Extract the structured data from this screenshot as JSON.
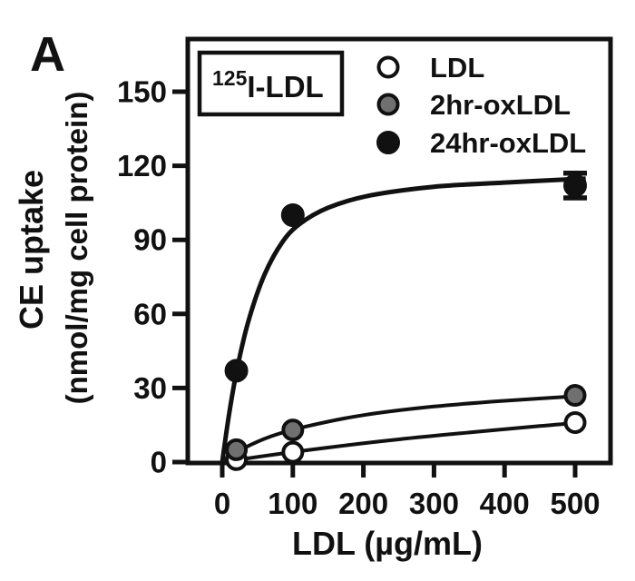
{
  "panel": {
    "label": "A"
  },
  "inset": {
    "superscript": "125",
    "label": "I-LDL"
  },
  "colors": {
    "ink": "#111111",
    "gray_marker": "#707070",
    "white_marker": "#ffffff",
    "background": "#ffffff"
  },
  "chart_data": {
    "type": "scatter",
    "title": "",
    "xlabel": "LDL (µg/mL)",
    "ylabel": [
      "CE uptake",
      "(nmol/mg cell protein)"
    ],
    "x_ticks": [
      0,
      100,
      200,
      300,
      400,
      500
    ],
    "y_ticks": [
      0,
      30,
      60,
      90,
      120,
      150
    ],
    "xlim": [
      -49,
      550
    ],
    "ylim": [
      0,
      171
    ],
    "grid": false,
    "legend_position": "top-right-inside",
    "series": [
      {
        "name": "LDL",
        "marker": "open-circle",
        "marker_fill": "#ffffff",
        "line_width": 4,
        "points": [
          {
            "x": 20,
            "y": 1
          },
          {
            "x": 100,
            "y": 4
          },
          {
            "x": 500,
            "y": 16
          }
        ],
        "fit_curve": [
          [
            0,
            0
          ],
          [
            60,
            2.5
          ],
          [
            150,
            5.9
          ],
          [
            250,
            9.2
          ],
          [
            350,
            12.0
          ],
          [
            450,
            14.6
          ],
          [
            515,
            16.1
          ]
        ]
      },
      {
        "name": "2hr-oxLDL",
        "marker": "gray-circle",
        "marker_fill": "#707070",
        "line_width": 4,
        "points": [
          {
            "x": 20,
            "y": 5
          },
          {
            "x": 100,
            "y": 13
          },
          {
            "x": 500,
            "y": 27
          }
        ],
        "fit_curve": [
          [
            0,
            0
          ],
          [
            30,
            5.5
          ],
          [
            70,
            10.5
          ],
          [
            120,
            14.5
          ],
          [
            200,
            19
          ],
          [
            300,
            22.5
          ],
          [
            400,
            24.8
          ],
          [
            515,
            26.9
          ]
        ]
      },
      {
        "name": "24hr-oxLDL",
        "marker": "filled-circle",
        "marker_fill": "#111111",
        "line_width": 5,
        "points": [
          {
            "x": 20,
            "y": 37
          },
          {
            "x": 100,
            "y": 100
          },
          {
            "x": 500,
            "y": 112,
            "err": 5
          }
        ],
        "fit_curve": [
          [
            0,
            0
          ],
          [
            10,
            20
          ],
          [
            22,
            39
          ],
          [
            38,
            58
          ],
          [
            60,
            76
          ],
          [
            85,
            89
          ],
          [
            110,
            96.5
          ],
          [
            150,
            103
          ],
          [
            210,
            108
          ],
          [
            300,
            111.5
          ],
          [
            400,
            113.2
          ],
          [
            515,
            114.8
          ]
        ]
      }
    ]
  }
}
